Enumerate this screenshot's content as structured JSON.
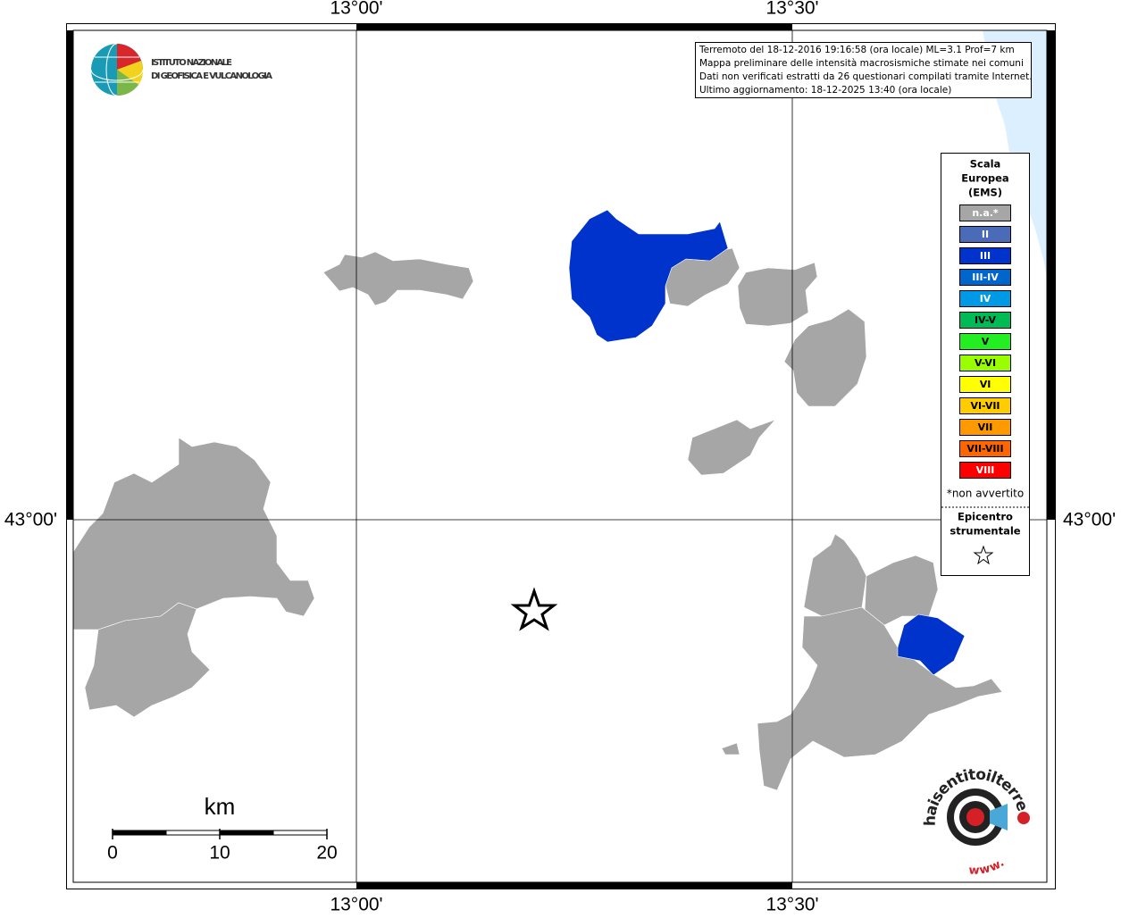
{
  "map": {
    "graticule": {
      "lon_top": [
        "13°00'",
        "13°30'"
      ],
      "lon_bottom": [
        "13°00'",
        "13°30'"
      ],
      "lat_left": "43°00'",
      "lat_right": "43°00'"
    },
    "info": [
      "Terremoto del 18-12-2016 19:16:58 (ora locale) ML=3.1 Prof=7 km",
      "Mappa preliminare delle intensità macrosismiche stimate nei comuni",
      "Dati non verificati estratti da 26 questionari compilati tramite Internet.",
      "Ultimo aggiornamento: 18-12-2025 13:40 (ora locale)"
    ],
    "ingv": [
      "ISTITUTO NAZIONALE",
      "DI GEOFISICA E VULCANOLOGIA"
    ],
    "legend": {
      "title": [
        "Scala",
        "Europea",
        "(EMS)"
      ],
      "items": [
        {
          "label": "n.a.*",
          "color": "#a6a6a6",
          "text_color": "#ffffff"
        },
        {
          "label": "II",
          "color": "#4a6cb8",
          "text_color": "#ffffff"
        },
        {
          "label": "III",
          "color": "#0033cc",
          "text_color": "#ffffff"
        },
        {
          "label": "III-IV",
          "color": "#0066cc",
          "text_color": "#ffffff"
        },
        {
          "label": "IV",
          "color": "#0099e6",
          "text_color": "#ffffff"
        },
        {
          "label": "IV-V",
          "color": "#00bb55",
          "text_color": "#000000"
        },
        {
          "label": "V",
          "color": "#22ee22",
          "text_color": "#000000"
        },
        {
          "label": "V-VI",
          "color": "#99ff00",
          "text_color": "#000000"
        },
        {
          "label": "VI",
          "color": "#ffff00",
          "text_color": "#000000"
        },
        {
          "label": "VI-VII",
          "color": "#ffcc00",
          "text_color": "#000000"
        },
        {
          "label": "VII",
          "color": "#ff9900",
          "text_color": "#000000"
        },
        {
          "label": "VII-VIII",
          "color": "#ff6600",
          "text_color": "#000000"
        },
        {
          "label": "VIII",
          "color": "#ff0000",
          "text_color": "#ffffff"
        }
      ],
      "note": "*non avvertito",
      "epicentre": [
        "Epicentro",
        "strumentale"
      ]
    },
    "scale": {
      "unit": "km",
      "ticks": [
        0,
        10,
        20
      ]
    },
    "logo": {
      "text": "haisentitoilterremoto.it",
      "www": "www."
    }
  }
}
